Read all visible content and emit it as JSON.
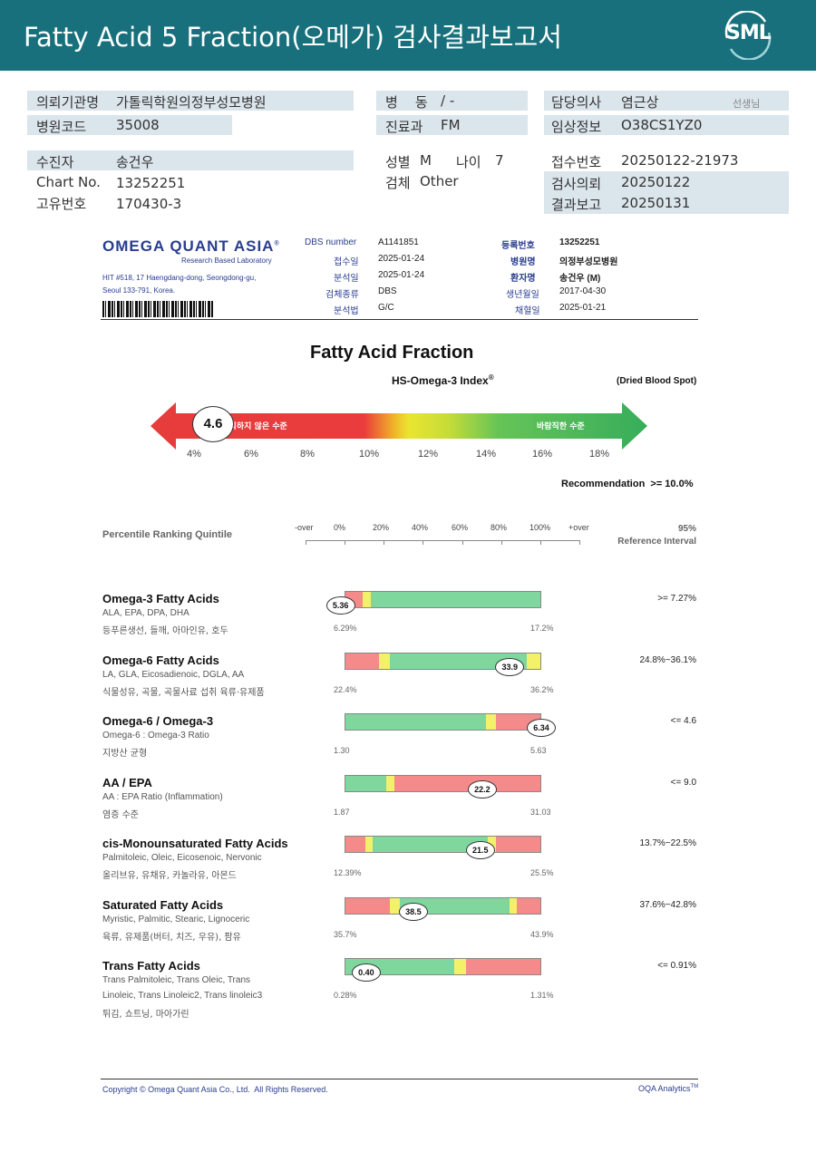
{
  "header": {
    "title": "Fatty Acid 5 Fraction(오메가) 검사결과보고서",
    "logo_text": "SML"
  },
  "info": {
    "institution_label": "의뢰기관명",
    "institution": "가톨릭학원의정부성모병원",
    "hospital_code_label": "병원코드",
    "hospital_code": "35008",
    "ward_label": "병    동",
    "ward": "/ -",
    "department_label": "진료과",
    "department": "FM",
    "doctor_label": "담당의사",
    "doctor": "염근상",
    "doctor_suffix": "선생님",
    "clinical_info_label": "임상정보",
    "clinical_info": "O38CS1YZ0",
    "patient_label": "수진자",
    "patient": "송건우",
    "chart_no_label": "Chart No.",
    "chart_no": "13252251",
    "unique_no_label": "고유번호",
    "unique_no": "170430-3",
    "sex_label": "성별",
    "sex": "M",
    "age_label": "나이",
    "age": "7",
    "specimen_label": "검체",
    "specimen": "Other",
    "receipt_no_label": "접수번호",
    "receipt_no": "20250122-21973",
    "request_date_label": "검사의뢰",
    "request_date": "20250122",
    "report_date_label": "결과보고",
    "report_date": "20250131"
  },
  "oqa": {
    "logo": "OMEGA QUANT ASIA",
    "logo_reg": "®",
    "logo_sub": "Research Based Laboratory",
    "address1": "HIT #518, 17 Haengdang-dong, Seoul 133-791, Korea.",
    "address_line1": "HIT #518, 17 Haengdang-dong, Seongdong-gu,",
    "address_line2": "Seoul 133-791, Korea.",
    "dbs_number_label": "DBS number",
    "dbs_number": "A1141851",
    "received_label": "접수일",
    "received": "2025-01-24",
    "analyzed_label": "분석일",
    "analyzed": "2025-01-24",
    "specimen_type_label": "검체종류",
    "specimen_type": "DBS",
    "method_label": "분석법",
    "method": "G/C",
    "reg_no_label": "등록번호",
    "reg_no": "13252251",
    "hospital_label": "병원명",
    "hospital": "의정부성모병원",
    "patient_label": "환자명",
    "patient": "송건우 (M)",
    "birth_label": "생년월일",
    "birth": "2017-04-30",
    "collected_label": "채혈일",
    "collected": "2025-01-21"
  },
  "index": {
    "main_title": "Fatty Acid Fraction",
    "subtitle": "HS-Omega-3 Index",
    "subtitle_reg": "®",
    "sample_type": "(Dried Blood Spot)",
    "value": "4.6",
    "value_num": 4.6,
    "left_text": "바람직하지 않은 수준",
    "right_text": "바람직한 수준",
    "ticks": [
      "4%",
      "6%",
      "8%",
      "10%",
      "12%",
      "14%",
      "16%",
      "18%"
    ],
    "recommendation": "Recommendation  >= 10.0%"
  },
  "quintile": {
    "label": "Percentile Ranking Quintile",
    "ticks": [
      "-over",
      "0%",
      "20%",
      "40%",
      "60%",
      "80%",
      "100%",
      "+over"
    ],
    "ref_header1": "95%",
    "ref_header2": "Reference Interval"
  },
  "colors": {
    "red": "#f58a8a",
    "yellow": "#f3f06a",
    "green": "#7fd79e",
    "header": "#18707c",
    "shade": "#dbe5ec"
  },
  "rows": [
    {
      "title": "Omega-3 Fatty Acids",
      "sub": "ALA, EPA, DPA, DHA",
      "food": "등푸른생선, 들깨, 아마인유, 호두",
      "min": "6.29%",
      "max": "17.2%",
      "ref": ">= 7.27%",
      "value": "5.36",
      "marker_pct": -2,
      "segments": [
        [
          "red",
          0,
          9
        ],
        [
          "yellow",
          9,
          13
        ],
        [
          "green",
          13,
          100
        ]
      ]
    },
    {
      "title": "Omega-6 Fatty Acids",
      "sub": "LA, GLA, Eicosadienoic, DGLA, AA",
      "food": "식물성유, 곡물, 곡물사료 섭취 육류·유제품",
      "min": "22.4%",
      "max": "36.2%",
      "ref": "24.8%~36.1%",
      "value": "33.9",
      "marker_pct": 84,
      "segments": [
        [
          "red",
          0,
          17
        ],
        [
          "yellow",
          17,
          23
        ],
        [
          "green",
          23,
          93
        ],
        [
          "yellow",
          93,
          100
        ]
      ]
    },
    {
      "title": "Omega-6 / Omega-3",
      "sub": "Omega-6 : Omega-3 Ratio",
      "food": "지방산 균형",
      "min": "1.30",
      "max": "5.63",
      "ref": "<= 4.6",
      "value": "6.34",
      "marker_pct": 100,
      "segments": [
        [
          "green",
          0,
          72
        ],
        [
          "yellow",
          72,
          77
        ],
        [
          "red",
          77,
          100
        ]
      ]
    },
    {
      "title": "AA / EPA",
      "sub": "AA : EPA Ratio (Inflammation)",
      "food": "염증 수준",
      "min": "1.87",
      "max": "31.03",
      "ref": "<= 9.0",
      "value": "22.2",
      "marker_pct": 70,
      "segments": [
        [
          "green",
          0,
          21
        ],
        [
          "yellow",
          21,
          25
        ],
        [
          "red",
          25,
          100
        ]
      ]
    },
    {
      "title": "cis-Monounsaturated Fatty Acids",
      "sub": "Palmitoleic, Oleic, Eicosenoic, Nervonic",
      "food": "올리브유, 유채유, 카놀라유, 아몬드",
      "min": "12.39%",
      "max": "25.5%",
      "ref": "13.7%~22.5%",
      "value": "21.5",
      "marker_pct": 69,
      "segments": [
        [
          "red",
          0,
          10
        ],
        [
          "yellow",
          10,
          14
        ],
        [
          "green",
          14,
          73
        ],
        [
          "yellow",
          73,
          77
        ],
        [
          "red",
          77,
          100
        ]
      ]
    },
    {
      "title": "Saturated Fatty Acids",
      "sub": "Myristic, Palmitic, Stearic, Lignoceric",
      "food": "육류, 유제품(버터, 치즈, 우유), 팜유",
      "min": "35.7%",
      "max": "43.9%",
      "ref": "37.6%~42.8%",
      "value": "38.5",
      "marker_pct": 35,
      "segments": [
        [
          "red",
          0,
          23
        ],
        [
          "yellow",
          23,
          28
        ],
        [
          "green",
          28,
          84
        ],
        [
          "yellow",
          84,
          88
        ],
        [
          "red",
          88,
          100
        ]
      ]
    },
    {
      "title": "Trans Fatty Acids",
      "sub": "Trans Palmitoleic, Trans Oleic, Trans",
      "sub2": "Linoleic, Trans Linoleic2, Trans linoleic3",
      "food": "튀김, 쇼트닝, 마아가린",
      "min": "0.28%",
      "max": "1.31%",
      "ref": "<= 0.91%",
      "value": "0.40",
      "marker_pct": 11,
      "segments": [
        [
          "green",
          0,
          56
        ],
        [
          "yellow",
          56,
          62
        ],
        [
          "red",
          62,
          100
        ]
      ]
    }
  ],
  "footer": {
    "copyright": "Copyright © Omega Quant Asia Co., Ltd.  All Rights Reserved.",
    "brand": "OQA Analytics",
    "brand_tm": "TM"
  }
}
